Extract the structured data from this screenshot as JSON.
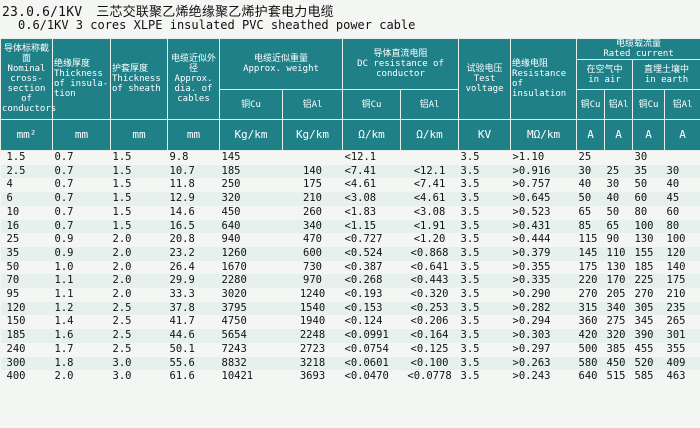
{
  "title": {
    "code": "23.0.6/1KV",
    "cn": "三芯交联聚乙烯绝缘聚乙烯护套电力电缆",
    "en": "0.6/1KV  3  cores XLPE insulated PVC sheathed power cable"
  },
  "headers": {
    "section": {
      "cn": "导体标称截面",
      "en": "Nominal cross-section of conductors"
    },
    "insul": {
      "cn": "绝缘厚度",
      "en": "Thickness of insula-tion"
    },
    "sheath": {
      "cn": "护套厚度",
      "en": "Thickness of sheath"
    },
    "dia": {
      "cn": "电缆近似外径",
      "en": "Approx. dia. of cables"
    },
    "weight": {
      "cn": "电缆近似重量",
      "en": "Approx. weight",
      "cu": "铜Cu",
      "al": "铝Al"
    },
    "dcr": {
      "cn": "导体直流电阻",
      "en": "DC resistance of conductor",
      "cu": "铜Cu",
      "al": "铝Al"
    },
    "test": {
      "cn": "试验电压",
      "en": "Test voltage"
    },
    "ir": {
      "cn": "绝缘电阻",
      "en": "Resistance of insulation"
    },
    "rated": {
      "cn": "电缆载流量",
      "en": "Rated current"
    },
    "air": {
      "cn": "在空气中",
      "en": "in air",
      "cu": "铜Cu",
      "al": "铝Al"
    },
    "earth": {
      "cn": "直埋土壤中",
      "en": "in earth",
      "cu": "铜Cu",
      "al": "铝Al"
    }
  },
  "units": [
    "mm²",
    "mm",
    "mm",
    "mm",
    "Kg/km",
    "Kg/km",
    "Ω/km",
    "Ω/km",
    "KV",
    "MΩ/km",
    "A",
    "A",
    "A",
    "A"
  ],
  "rows": [
    [
      "1.5",
      "0.7",
      "1.5",
      "9.8",
      "145",
      "",
      "<12.1",
      "",
      "3.5",
      ">1.10",
      "25",
      "",
      "30",
      ""
    ],
    [
      "2.5",
      "0.7",
      "1.5",
      "10.7",
      "185",
      "140",
      "<7.41",
      "<12.1",
      "3.5",
      ">0.916",
      "30",
      "25",
      "35",
      "30"
    ],
    [
      "4",
      "0.7",
      "1.5",
      "11.8",
      "250",
      "175",
      "<4.61",
      "<7.41",
      "3.5",
      ">0.757",
      "40",
      "30",
      "50",
      "40"
    ],
    [
      "6",
      "0.7",
      "1.5",
      "12.9",
      "320",
      "210",
      "<3.08",
      "<4.61",
      "3.5",
      ">0.645",
      "50",
      "40",
      "60",
      "45"
    ],
    [
      "10",
      "0.7",
      "1.5",
      "14.6",
      "450",
      "260",
      "<1.83",
      "<3.08",
      "3.5",
      ">0.523",
      "65",
      "50",
      "80",
      "60"
    ],
    [
      "16",
      "0.7",
      "1.5",
      "16.5",
      "640",
      "340",
      "<1.15",
      "<1.91",
      "3.5",
      ">0.431",
      "85",
      "65",
      "100",
      "80"
    ],
    [
      "25",
      "0.9",
      "2.0",
      "20.8",
      "940",
      "470",
      "<0.727",
      "<1.20",
      "3.5",
      ">0.444",
      "115",
      "90",
      "130",
      "100"
    ],
    [
      "35",
      "0.9",
      "2.0",
      "23.2",
      "1260",
      "600",
      "<0.524",
      "<0.868",
      "3.5",
      ">0.379",
      "145",
      "110",
      "155",
      "120"
    ],
    [
      "50",
      "1.0",
      "2.0",
      "26.4",
      "1670",
      "730",
      "<0.387",
      "<0.641",
      "3.5",
      ">0.355",
      "175",
      "130",
      "185",
      "140"
    ],
    [
      "70",
      "1.1",
      "2.0",
      "29.9",
      "2280",
      "970",
      "<0.268",
      "<0.443",
      "3.5",
      ">0.335",
      "220",
      "170",
      "225",
      "175"
    ],
    [
      "95",
      "1.1",
      "2.0",
      "33.3",
      "3020",
      "1240",
      "<0.193",
      "<0.320",
      "3.5",
      ">0.290",
      "270",
      "205",
      "270",
      "210"
    ],
    [
      "120",
      "1.2",
      "2.5",
      "37.8",
      "3795",
      "1540",
      "<0.153",
      "<0.253",
      "3.5",
      ">0.282",
      "315",
      "340",
      "305",
      "235"
    ],
    [
      "150",
      "1.4",
      "2.5",
      "41.7",
      "4750",
      "1940",
      "<0.124",
      "<0.206",
      "3.5",
      ">0.294",
      "360",
      "275",
      "345",
      "265"
    ],
    [
      "185",
      "1.6",
      "2.5",
      "44.6",
      "5654",
      "2248",
      "<0.0991",
      "<0.164",
      "3.5",
      ">0.303",
      "420",
      "320",
      "390",
      "301"
    ],
    [
      "240",
      "1.7",
      "2.5",
      "50.1",
      "7243",
      "2723",
      "<0.0754",
      "<0.125",
      "3.5",
      ">0.297",
      "500",
      "385",
      "455",
      "355"
    ],
    [
      "300",
      "1.8",
      "3.0",
      "55.6",
      "8832",
      "3218",
      "<0.0601",
      "<0.100",
      "3.5",
      ">0.263",
      "580",
      "450",
      "520",
      "409"
    ],
    [
      "400",
      "2.0",
      "3.0",
      "61.6",
      "10421",
      "3693",
      "<0.0470",
      "<0.0778",
      "3.5",
      ">0.243",
      "640",
      "515",
      "585",
      "463"
    ]
  ]
}
